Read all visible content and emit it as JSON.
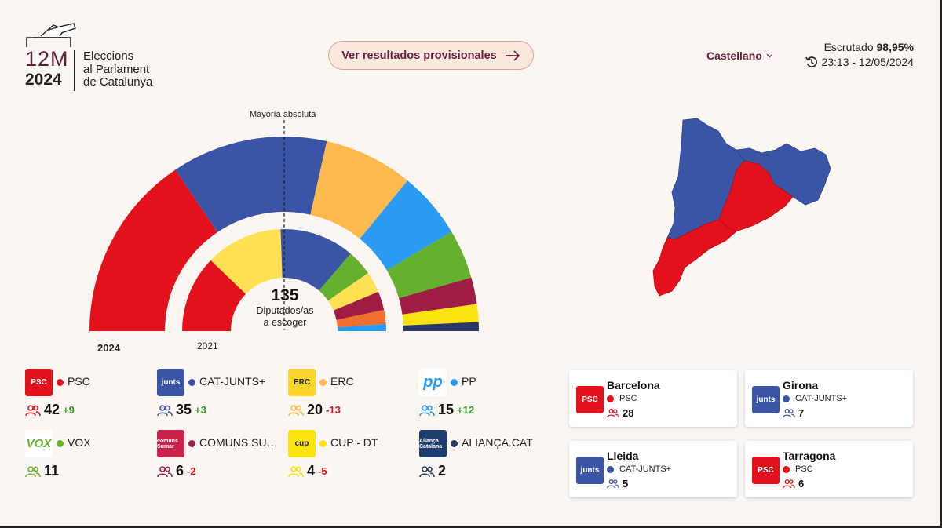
{
  "header": {
    "logo_top": "12M",
    "logo_year": "2024",
    "logo_title_lines": [
      "Eleccions",
      "al Parlament",
      "de Catalunya"
    ],
    "cta_label": "Ver resultados provisionales",
    "language": "Castellano",
    "scrutiny_label": "Escrutado",
    "scrutiny_value": "98,95%",
    "timestamp": "23:13 - 12/05/2024"
  },
  "colors": {
    "psc": "#e3111b",
    "junts": "#3a55a6",
    "erc": "#fbb94e",
    "pp": "#2b9af3",
    "vox": "#63b12e",
    "comuns": "#9f1d42",
    "cup": "#fbe211",
    "aliansa": "#283862",
    "cs": "#f16e2c"
  },
  "hemicycle": {
    "majority_label": "Mayoría absoluta",
    "total": "135",
    "total_label_lines": [
      "Diputados/as",
      "a escoger"
    ],
    "outer_year": "2024",
    "inner_year": "2021",
    "seats_2024": [
      {
        "party": "PSC",
        "seats": 42,
        "color": "#e3111b"
      },
      {
        "party": "CAT-JUNTS+",
        "seats": 35,
        "color": "#3a55a6"
      },
      {
        "party": "ERC",
        "seats": 20,
        "color": "#fbb94e"
      },
      {
        "party": "PP",
        "seats": 15,
        "color": "#2b9af3"
      },
      {
        "party": "VOX",
        "seats": 11,
        "color": "#63b12e"
      },
      {
        "party": "COMUNS SUMAR",
        "seats": 6,
        "color": "#9f1d42"
      },
      {
        "party": "CUP - DT",
        "seats": 4,
        "color": "#fbe211"
      },
      {
        "party": "ALIANÇA.CAT",
        "seats": 2,
        "color": "#283862"
      }
    ],
    "seats_2021": [
      {
        "party": "PSC",
        "seats": 33,
        "color": "#e3111b"
      },
      {
        "party": "ERC",
        "seats": 33,
        "color": "#fde153"
      },
      {
        "party": "JUNTS",
        "seats": 32,
        "color": "#3a55a6"
      },
      {
        "party": "VOX",
        "seats": 11,
        "color": "#63b12e"
      },
      {
        "party": "CUP",
        "seats": 9,
        "color": "#fde153"
      },
      {
        "party": "COMUNS",
        "seats": 8,
        "color": "#9f1d42"
      },
      {
        "party": "CS",
        "seats": 6,
        "color": "#f16e2c"
      },
      {
        "party": "PP",
        "seats": 3,
        "color": "#2b9af3"
      }
    ]
  },
  "parties": [
    {
      "name": "PSC",
      "logo": "PSC",
      "seats": "42",
      "delta": "+9",
      "color": "#e3111b",
      "logo_bg": "#e3111b"
    },
    {
      "name": "CAT-JUNTS+",
      "logo": "junts",
      "seats": "35",
      "delta": "+3",
      "color": "#3a55a6",
      "logo_bg": "#3a55a6"
    },
    {
      "name": "ERC",
      "logo": "ERC",
      "seats": "20",
      "delta": "-13",
      "color": "#fbb94e",
      "logo_bg": "#fbd629"
    },
    {
      "name": "PP",
      "logo": "pp",
      "seats": "15",
      "delta": "+12",
      "color": "#2b9af3",
      "logo_bg": "#ffffff"
    },
    {
      "name": "VOX",
      "logo": "VOX",
      "seats": "11",
      "delta": "",
      "color": "#63b12e",
      "logo_bg": "#ffffff"
    },
    {
      "name": "COMUNS SUMAR",
      "logo": "comuns Sumar",
      "seats": "6",
      "delta": "-2",
      "color": "#9f1d42",
      "logo_bg": "#c8214a"
    },
    {
      "name": "CUP - DT",
      "logo": "cup",
      "seats": "4",
      "delta": "-5",
      "color": "#fbe211",
      "logo_bg": "#fbe211"
    },
    {
      "name": "ALIANÇA.CAT",
      "logo": "Aliança Catalana",
      "seats": "2",
      "delta": "",
      "color": "#283862",
      "logo_bg": "#1c3d6e"
    }
  ],
  "provinces": [
    {
      "name": "Barcelona",
      "party": "PSC",
      "logo": "PSC",
      "seats": "28",
      "color": "#e3111b",
      "logo_bg": "#e3111b"
    },
    {
      "name": "Girona",
      "party": "CAT-JUNTS+",
      "logo": "junts",
      "seats": "7",
      "color": "#3a55a6",
      "logo_bg": "#3a55a6"
    },
    {
      "name": "Lleida",
      "party": "CAT-JUNTS+",
      "logo": "junts",
      "seats": "5",
      "color": "#3a55a6",
      "logo_bg": "#3a55a6"
    },
    {
      "name": "Tarragona",
      "party": "PSC",
      "logo": "PSC",
      "seats": "6",
      "color": "#e3111b",
      "logo_bg": "#e3111b"
    }
  ],
  "map": {
    "regions": [
      {
        "name": "Lleida",
        "winner": "CAT-JUNTS+",
        "color": "#3a55a6"
      },
      {
        "name": "Girona",
        "winner": "CAT-JUNTS+",
        "color": "#3a55a6"
      },
      {
        "name": "Barcelona",
        "winner": "PSC",
        "color": "#e3111b"
      },
      {
        "name": "Tarragona",
        "winner": "PSC",
        "color": "#e3111b"
      }
    ]
  }
}
